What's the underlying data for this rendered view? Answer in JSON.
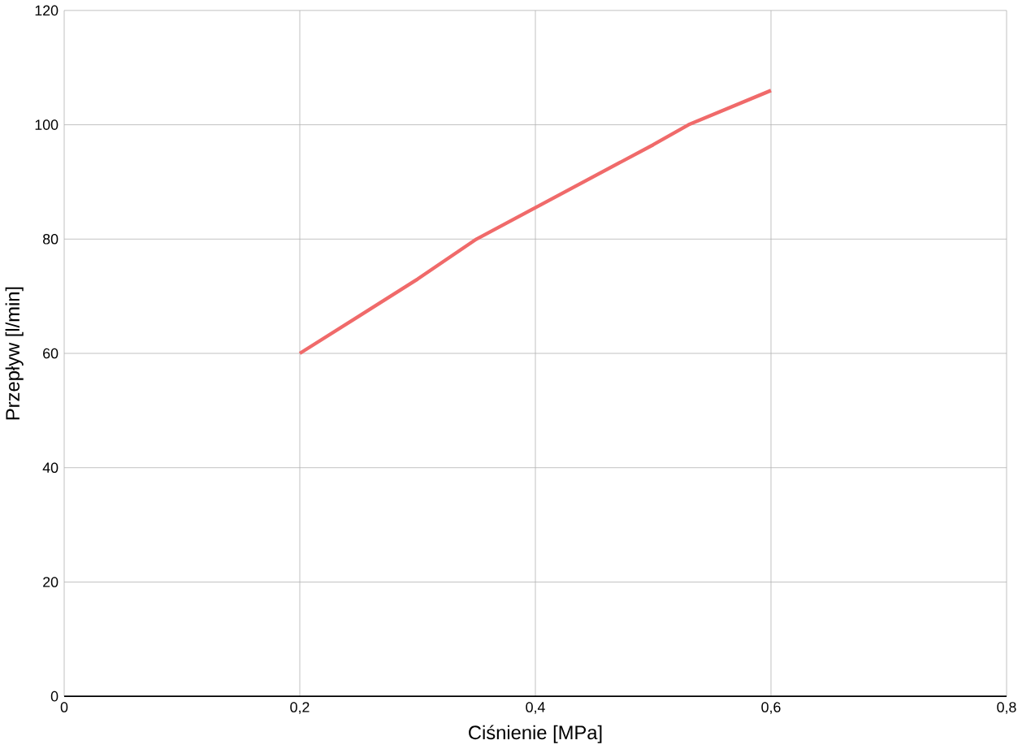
{
  "chart_data": {
    "type": "line",
    "xlabel": "Ciśnienie [MPa]",
    "ylabel": "Przepływ [l/min]",
    "series": [
      {
        "color": "#f06a6a",
        "x": [
          0.2,
          0.25,
          0.3,
          0.35,
          0.4,
          0.45,
          0.5,
          0.53,
          0.6
        ],
        "values": [
          60,
          66.5,
          73,
          80,
          85.5,
          91,
          96.5,
          100,
          106
        ]
      }
    ],
    "xlim": [
      0,
      0.8
    ],
    "ylim": [
      0,
      120
    ],
    "xticks": [
      0,
      {
        "value": 0.2,
        "label": "0,2"
      },
      {
        "value": 0.4,
        "label": "0,4"
      },
      {
        "value": 0.6,
        "label": "0,6"
      },
      {
        "value": 0.8,
        "label": "0,8"
      }
    ],
    "yticks": [
      0,
      20,
      40,
      60,
      80,
      100,
      120
    ],
    "grid": true,
    "marker": "none",
    "line_style": "solid"
  }
}
